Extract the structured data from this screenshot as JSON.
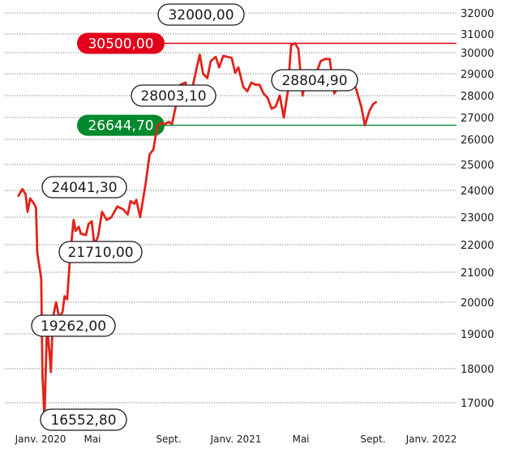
{
  "chart_data": {
    "type": "line",
    "title": "",
    "xlabel": "",
    "ylabel": "",
    "y_axis": {
      "ticks": [
        17000,
        18000,
        19000,
        20000,
        21000,
        22000,
        23000,
        24000,
        25000,
        26000,
        27000,
        28000,
        29000,
        30000,
        31000,
        32000
      ],
      "tick_labels": [
        "17000",
        "18000",
        "19000",
        "20000",
        "21000",
        "22000",
        "23000",
        "24000",
        "25000",
        "26000",
        "27000",
        "28000",
        "29000",
        "30000",
        "31000",
        "32000"
      ]
    },
    "x_axis": {
      "labels": [
        {
          "text": "Janv. 2020",
          "t": 0.0
        },
        {
          "text": "Mai",
          "t": 4.0
        },
        {
          "text": "Sept.",
          "t": 8.0
        },
        {
          "text": "Janv. 2021",
          "t": 12.0
        },
        {
          "text": "Mai",
          "t": 16.0
        },
        {
          "text": "Sept.",
          "t": 20.0
        },
        {
          "text": "Janv. 2022",
          "t": 24.0
        }
      ]
    },
    "series": [
      {
        "color": "#e2231a",
        "points": [
          [
            -1.7,
            23800
          ],
          [
            -1.4,
            24050
          ],
          [
            -1.15,
            23850
          ],
          [
            -1.0,
            23200
          ],
          [
            -0.8,
            23700
          ],
          [
            -0.5,
            23500
          ],
          [
            -0.35,
            23350
          ],
          [
            -0.25,
            21700
          ],
          [
            0.05,
            20800
          ],
          [
            0.15,
            17800
          ],
          [
            0.3,
            16552
          ],
          [
            0.5,
            19262
          ],
          [
            0.7,
            18400
          ],
          [
            0.8,
            17900
          ],
          [
            0.95,
            19500
          ],
          [
            1.2,
            20000
          ],
          [
            1.45,
            19500
          ],
          [
            1.7,
            19700
          ],
          [
            1.85,
            20200
          ],
          [
            2.05,
            20100
          ],
          [
            2.3,
            21710
          ],
          [
            2.55,
            22900
          ],
          [
            2.7,
            22500
          ],
          [
            2.95,
            22650
          ],
          [
            3.1,
            22400
          ],
          [
            3.5,
            22350
          ],
          [
            3.7,
            22750
          ],
          [
            3.95,
            22850
          ],
          [
            4.1,
            22000
          ],
          [
            4.3,
            22300
          ],
          [
            4.5,
            23200
          ],
          [
            4.75,
            22900
          ],
          [
            5.0,
            23000
          ],
          [
            5.3,
            23400
          ],
          [
            5.6,
            23300
          ],
          [
            5.85,
            23100
          ],
          [
            6.0,
            23600
          ],
          [
            6.2,
            23500
          ],
          [
            6.3,
            23650
          ],
          [
            6.5,
            23000
          ],
          [
            6.8,
            24300
          ],
          [
            7.0,
            25400
          ],
          [
            7.2,
            25600
          ],
          [
            7.4,
            26600
          ],
          [
            7.6,
            26750
          ],
          [
            7.8,
            26700
          ],
          [
            8.0,
            26800
          ],
          [
            8.2,
            26700
          ],
          [
            8.5,
            27800
          ],
          [
            8.7,
            28500
          ],
          [
            9.0,
            28600
          ],
          [
            9.2,
            27700
          ],
          [
            9.45,
            28500
          ],
          [
            9.7,
            29400
          ],
          [
            9.85,
            29900
          ],
          [
            10.05,
            29000
          ],
          [
            10.3,
            28800
          ],
          [
            10.5,
            29600
          ],
          [
            10.8,
            29800
          ],
          [
            11.0,
            29300
          ],
          [
            11.25,
            29850
          ],
          [
            11.5,
            29800
          ],
          [
            11.75,
            29750
          ],
          [
            11.95,
            29050
          ],
          [
            12.15,
            29300
          ],
          [
            12.45,
            28400
          ],
          [
            12.7,
            28200
          ],
          [
            12.95,
            28600
          ],
          [
            13.2,
            28500
          ],
          [
            13.45,
            28500
          ],
          [
            13.7,
            28100
          ],
          [
            13.95,
            27900
          ],
          [
            14.2,
            27400
          ],
          [
            14.45,
            27500
          ],
          [
            14.7,
            28000
          ],
          [
            14.95,
            27000
          ],
          [
            15.2,
            28200
          ],
          [
            15.4,
            30400
          ],
          [
            15.65,
            30500
          ],
          [
            15.85,
            30200
          ],
          [
            16.1,
            28000
          ],
          [
            16.35,
            29100
          ],
          [
            16.6,
            28900
          ],
          [
            16.85,
            29000
          ],
          [
            17.1,
            29600
          ],
          [
            17.35,
            29700
          ],
          [
            17.6,
            29700
          ],
          [
            17.85,
            28100
          ],
          [
            18.1,
            28400
          ],
          [
            18.35,
            28600
          ],
          [
            18.6,
            28800
          ],
          [
            18.85,
            28800
          ],
          [
            19.1,
            28200
          ],
          [
            19.35,
            27500
          ],
          [
            19.55,
            26644
          ],
          [
            19.8,
            27300
          ],
          [
            20.0,
            27600
          ],
          [
            20.2,
            27700
          ]
        ]
      }
    ],
    "reference_lines": [
      {
        "value": 30500,
        "label": "30500,00",
        "color": "#e2001a"
      },
      {
        "value": 26644.7,
        "label": "26644,70",
        "color": "#008a2e"
      }
    ],
    "annotations": [
      {
        "label": "32000,00",
        "value": 32000
      },
      {
        "label": "28003,10",
        "value": 28003.1
      },
      {
        "label": "28804,90",
        "value": 28804.9
      },
      {
        "label": "24041,30",
        "value": 24041.3
      },
      {
        "label": "21710,00",
        "value": 21710
      },
      {
        "label": "19262,00",
        "value": 19262
      },
      {
        "label": "16552,80",
        "value": 16552.8
      }
    ]
  }
}
